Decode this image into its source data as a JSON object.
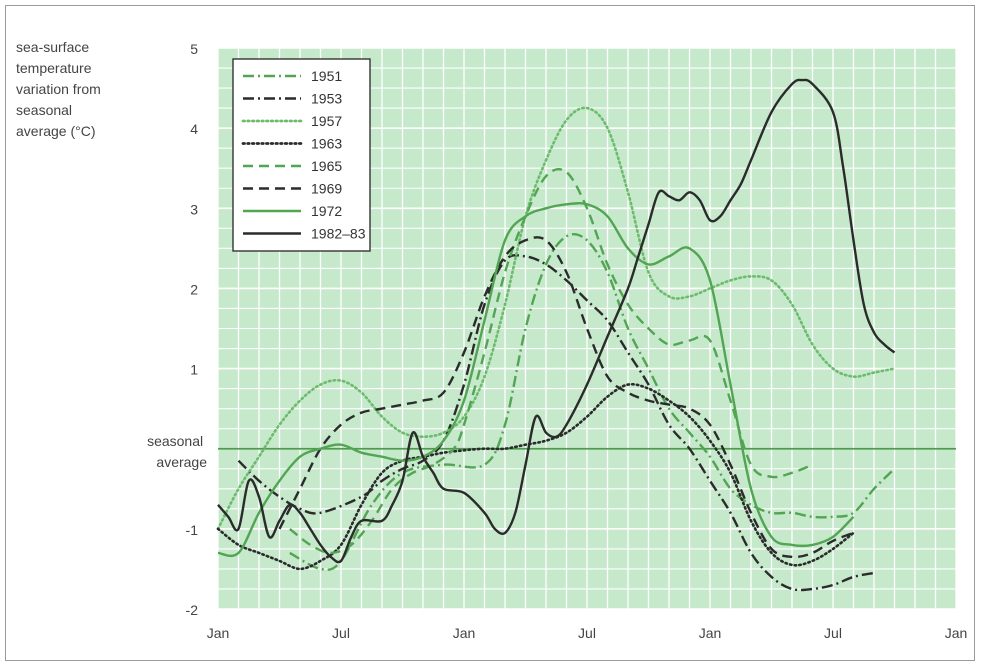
{
  "chart_data": {
    "type": "line",
    "title": "",
    "ylabel_lines": [
      "sea-surface",
      "temperature",
      "variation from",
      "seasonal",
      "average (°C)"
    ],
    "xlabel": "",
    "x_unit": "months since January of first year",
    "x_ticks": [
      {
        "x": 0,
        "label": "Jan"
      },
      {
        "x": 6,
        "label": "Jul"
      },
      {
        "x": 12,
        "label": "Jan"
      },
      {
        "x": 18,
        "label": "Jul"
      },
      {
        "x": 24,
        "label": "Jan"
      },
      {
        "x": 30,
        "label": "Jul"
      },
      {
        "x": 36,
        "label": "Jan"
      }
    ],
    "xlim": [
      0,
      36
    ],
    "ylim": [
      -2,
      5
    ],
    "y_ticks": [
      -2,
      -1,
      1,
      2,
      3,
      4,
      5
    ],
    "reference_line": {
      "y": 0,
      "label_lines": [
        "seasonal",
        "average"
      ]
    },
    "grid": true,
    "legend_position": "top-left",
    "colors": {
      "plot_background": "#c6e9cc",
      "grid": "#ffffff",
      "reference_line": "#4f9a4f",
      "medium_green": "#52a552",
      "dark": "#2b2b2b",
      "light_green": "#6dbb6d"
    },
    "series": [
      {
        "name": "1951",
        "color": "#52a552",
        "dash": "dashdot",
        "points": [
          [
            3.5,
            -1.3
          ],
          [
            5,
            -1.5
          ],
          [
            6,
            -1.4
          ],
          [
            7.5,
            -0.7
          ],
          [
            9,
            -0.3
          ],
          [
            11,
            -0.2
          ],
          [
            13,
            -0.2
          ],
          [
            14,
            0.3
          ],
          [
            15,
            1.5
          ],
          [
            16,
            2.3
          ],
          [
            17,
            2.65
          ],
          [
            18,
            2.6
          ],
          [
            19,
            2.2
          ],
          [
            20,
            1.5
          ],
          [
            21,
            1.0
          ],
          [
            22,
            0.5
          ],
          [
            23,
            0.2
          ],
          [
            24,
            -0.1
          ],
          [
            25,
            -0.5
          ],
          [
            26,
            -0.7
          ],
          [
            27,
            -0.8
          ],
          [
            28,
            -0.8
          ],
          [
            29,
            -0.85
          ],
          [
            30,
            -0.85
          ],
          [
            31,
            -0.8
          ],
          [
            32,
            -0.5
          ],
          [
            33,
            -0.25
          ]
        ]
      },
      {
        "name": "1953",
        "color": "#2b2b2b",
        "dash": "dashdot",
        "points": [
          [
            1,
            -0.15
          ],
          [
            2,
            -0.4
          ],
          [
            3,
            -0.6
          ],
          [
            4,
            -0.75
          ],
          [
            5,
            -0.8
          ],
          [
            7,
            -0.6
          ],
          [
            8,
            -0.4
          ],
          [
            9,
            -0.25
          ],
          [
            10,
            -0.15
          ],
          [
            11,
            0.1
          ],
          [
            12,
            0.8
          ],
          [
            13,
            1.8
          ],
          [
            14,
            2.35
          ],
          [
            15,
            2.4
          ],
          [
            16,
            2.3
          ],
          [
            17,
            2.1
          ],
          [
            18,
            1.85
          ],
          [
            19,
            1.6
          ],
          [
            20,
            1.2
          ],
          [
            21,
            0.8
          ],
          [
            22,
            0.3
          ],
          [
            23,
            0.0
          ],
          [
            24,
            -0.4
          ],
          [
            25,
            -0.8
          ],
          [
            26,
            -1.3
          ],
          [
            27,
            -1.6
          ],
          [
            28,
            -1.75
          ],
          [
            29,
            -1.75
          ],
          [
            30,
            -1.7
          ],
          [
            31,
            -1.6
          ],
          [
            32,
            -1.55
          ]
        ]
      },
      {
        "name": "1957",
        "color": "#6dbb6d",
        "dash": "dotted",
        "points": [
          [
            0,
            -1.0
          ],
          [
            1,
            -0.5
          ],
          [
            2,
            -0.1
          ],
          [
            3,
            0.3
          ],
          [
            4,
            0.6
          ],
          [
            5,
            0.8
          ],
          [
            6,
            0.85
          ],
          [
            7,
            0.7
          ],
          [
            8,
            0.4
          ],
          [
            9,
            0.2
          ],
          [
            10,
            0.15
          ],
          [
            11,
            0.2
          ],
          [
            12,
            0.4
          ],
          [
            13,
            0.9
          ],
          [
            14,
            1.8
          ],
          [
            15,
            2.9
          ],
          [
            16,
            3.6
          ],
          [
            17,
            4.1
          ],
          [
            18,
            4.25
          ],
          [
            19,
            4.0
          ],
          [
            20,
            3.2
          ],
          [
            21,
            2.2
          ],
          [
            22,
            1.9
          ],
          [
            23,
            1.9
          ],
          [
            24,
            2.0
          ],
          [
            25,
            2.1
          ],
          [
            26,
            2.15
          ],
          [
            27,
            2.1
          ],
          [
            28,
            1.8
          ],
          [
            29,
            1.3
          ],
          [
            30,
            1.0
          ],
          [
            31,
            0.9
          ],
          [
            32,
            0.95
          ],
          [
            33,
            1.0
          ]
        ]
      },
      {
        "name": "1963",
        "color": "#2b2b2b",
        "dash": "dotted",
        "points": [
          [
            0,
            -1.0
          ],
          [
            1,
            -1.2
          ],
          [
            2,
            -1.3
          ],
          [
            3,
            -1.4
          ],
          [
            4,
            -1.5
          ],
          [
            5,
            -1.4
          ],
          [
            6,
            -1.2
          ],
          [
            7,
            -0.7
          ],
          [
            8,
            -0.3
          ],
          [
            9,
            -0.15
          ],
          [
            10,
            -0.1
          ],
          [
            11,
            -0.05
          ],
          [
            12,
            -0.02
          ],
          [
            13,
            0.0
          ],
          [
            14,
            0.0
          ],
          [
            15,
            0.05
          ],
          [
            16,
            0.1
          ],
          [
            17,
            0.2
          ],
          [
            18,
            0.4
          ],
          [
            19,
            0.65
          ],
          [
            20,
            0.8
          ],
          [
            21,
            0.75
          ],
          [
            22,
            0.6
          ],
          [
            23,
            0.4
          ],
          [
            24,
            0.1
          ],
          [
            25,
            -0.3
          ],
          [
            26,
            -0.9
          ],
          [
            27,
            -1.3
          ],
          [
            28,
            -1.45
          ],
          [
            29,
            -1.4
          ],
          [
            30,
            -1.25
          ],
          [
            31,
            -1.05
          ]
        ]
      },
      {
        "name": "1965",
        "color": "#52a552",
        "dash": "dashed",
        "points": [
          [
            3.5,
            -1.0
          ],
          [
            4.5,
            -1.2
          ],
          [
            5.5,
            -1.3
          ],
          [
            6.5,
            -1.2
          ],
          [
            7.5,
            -0.9
          ],
          [
            8.5,
            -0.5
          ],
          [
            9.5,
            -0.3
          ],
          [
            10.5,
            -0.2
          ],
          [
            11.5,
            0.0
          ],
          [
            12,
            0.3
          ],
          [
            13,
            1.2
          ],
          [
            14,
            2.2
          ],
          [
            15,
            2.9
          ],
          [
            16,
            3.4
          ],
          [
            17,
            3.45
          ],
          [
            18,
            3.0
          ],
          [
            19,
            2.3
          ],
          [
            20,
            1.8
          ],
          [
            21,
            1.5
          ],
          [
            22,
            1.3
          ],
          [
            23,
            1.35
          ],
          [
            24,
            1.35
          ],
          [
            25,
            0.6
          ],
          [
            26,
            -0.2
          ],
          [
            27,
            -0.35
          ],
          [
            28,
            -0.3
          ],
          [
            29,
            -0.2
          ]
        ]
      },
      {
        "name": "1969",
        "color": "#2b2b2b",
        "dash": "dashed",
        "points": [
          [
            3,
            -1.0
          ],
          [
            4,
            -0.5
          ],
          [
            5,
            0.0
          ],
          [
            6,
            0.3
          ],
          [
            7,
            0.45
          ],
          [
            8,
            0.5
          ],
          [
            9,
            0.55
          ],
          [
            10,
            0.6
          ],
          [
            11,
            0.7
          ],
          [
            12,
            1.2
          ],
          [
            13,
            1.9
          ],
          [
            14,
            2.4
          ],
          [
            15,
            2.6
          ],
          [
            16,
            2.6
          ],
          [
            17,
            2.2
          ],
          [
            18,
            1.5
          ],
          [
            19,
            0.9
          ],
          [
            20,
            0.7
          ],
          [
            21,
            0.6
          ],
          [
            22,
            0.55
          ],
          [
            23,
            0.5
          ],
          [
            24,
            0.3
          ],
          [
            25,
            -0.2
          ],
          [
            26,
            -0.8
          ],
          [
            27,
            -1.25
          ],
          [
            28,
            -1.35
          ],
          [
            29,
            -1.3
          ],
          [
            30,
            -1.15
          ],
          [
            31,
            -1.05
          ]
        ]
      },
      {
        "name": "1972",
        "color": "#52a552",
        "dash": "solid",
        "points": [
          [
            0,
            -1.3
          ],
          [
            1,
            -1.3
          ],
          [
            2,
            -0.8
          ],
          [
            3,
            -0.4
          ],
          [
            4,
            -0.1
          ],
          [
            5,
            0.0
          ],
          [
            6,
            0.05
          ],
          [
            7,
            -0.05
          ],
          [
            8,
            -0.1
          ],
          [
            9,
            -0.15
          ],
          [
            10,
            -0.1
          ],
          [
            11,
            0.1
          ],
          [
            12,
            0.6
          ],
          [
            13,
            1.6
          ],
          [
            14,
            2.6
          ],
          [
            15,
            2.9
          ],
          [
            16,
            3.0
          ],
          [
            17,
            3.05
          ],
          [
            18,
            3.05
          ],
          [
            19,
            2.9
          ],
          [
            20,
            2.5
          ],
          [
            21,
            2.3
          ],
          [
            22,
            2.4
          ],
          [
            23,
            2.5
          ],
          [
            24,
            2.1
          ],
          [
            25,
            0.8
          ],
          [
            26,
            -0.5
          ],
          [
            27,
            -1.1
          ],
          [
            28,
            -1.2
          ],
          [
            29,
            -1.2
          ],
          [
            30,
            -1.1
          ],
          [
            31,
            -0.85
          ]
        ]
      },
      {
        "name": "1982–83",
        "color": "#2b2b2b",
        "dash": "solid",
        "points": [
          [
            0,
            -0.7
          ],
          [
            0.5,
            -0.85
          ],
          [
            1,
            -1.0
          ],
          [
            1.5,
            -0.4
          ],
          [
            2,
            -0.6
          ],
          [
            2.5,
            -1.1
          ],
          [
            3,
            -0.9
          ],
          [
            3.5,
            -0.7
          ],
          [
            4,
            -0.8
          ],
          [
            4.5,
            -1.0
          ],
          [
            5,
            -1.2
          ],
          [
            5.5,
            -1.35
          ],
          [
            6,
            -1.4
          ],
          [
            6.5,
            -1.1
          ],
          [
            7,
            -0.9
          ],
          [
            8,
            -0.9
          ],
          [
            8.5,
            -0.7
          ],
          [
            9,
            -0.4
          ],
          [
            9.5,
            0.2
          ],
          [
            10,
            -0.1
          ],
          [
            10.5,
            -0.3
          ],
          [
            11,
            -0.5
          ],
          [
            12,
            -0.55
          ],
          [
            13,
            -0.8
          ],
          [
            13.5,
            -1.0
          ],
          [
            14,
            -1.05
          ],
          [
            14.5,
            -0.8
          ],
          [
            15,
            -0.2
          ],
          [
            15.5,
            0.4
          ],
          [
            16,
            0.2
          ],
          [
            16.5,
            0.15
          ],
          [
            17,
            0.3
          ],
          [
            18,
            0.8
          ],
          [
            19,
            1.4
          ],
          [
            20,
            2.0
          ],
          [
            20.5,
            2.4
          ],
          [
            21,
            2.8
          ],
          [
            21.5,
            3.2
          ],
          [
            22,
            3.15
          ],
          [
            22.5,
            3.1
          ],
          [
            23,
            3.2
          ],
          [
            23.5,
            3.1
          ],
          [
            24,
            2.85
          ],
          [
            24.5,
            2.9
          ],
          [
            25,
            3.1
          ],
          [
            25.5,
            3.3
          ],
          [
            26,
            3.6
          ],
          [
            27,
            4.2
          ],
          [
            28,
            4.55
          ],
          [
            28.5,
            4.6
          ],
          [
            29,
            4.55
          ],
          [
            30,
            4.2
          ],
          [
            30.5,
            3.5
          ],
          [
            31,
            2.6
          ],
          [
            31.5,
            1.8
          ],
          [
            32,
            1.45
          ],
          [
            32.5,
            1.3
          ],
          [
            33,
            1.2
          ]
        ]
      }
    ]
  }
}
